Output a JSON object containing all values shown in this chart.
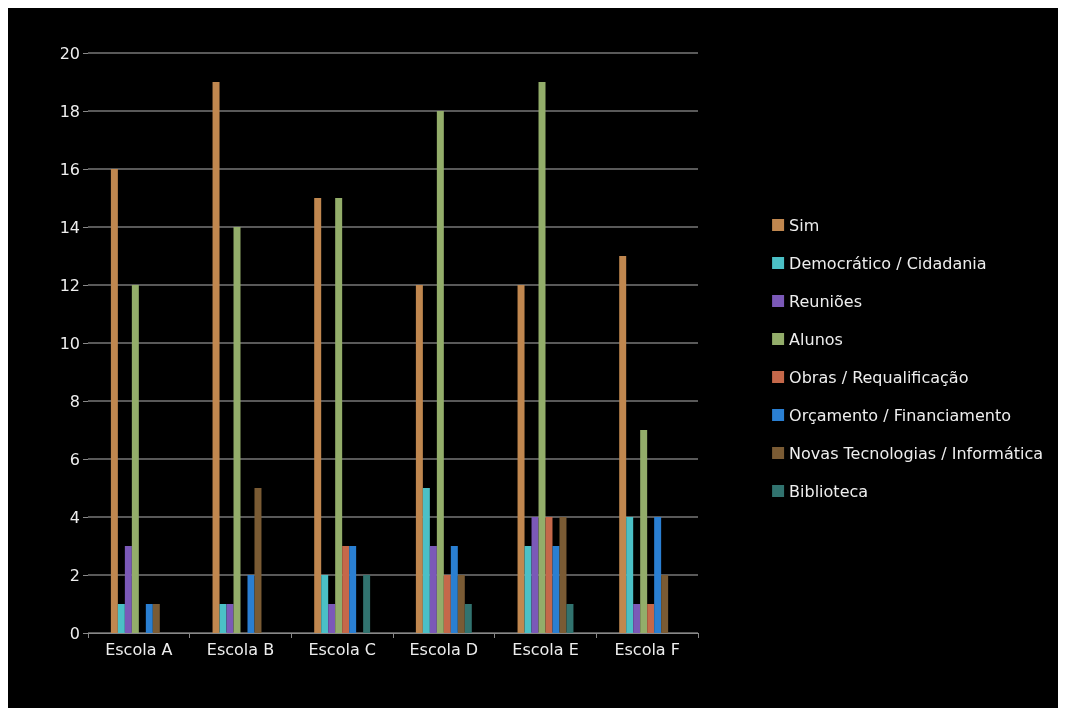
{
  "chart_data": {
    "type": "bar",
    "categories": [
      "Escola A",
      "Escola B",
      "Escola C",
      "Escola D",
      "Escola E",
      "Escola F"
    ],
    "series": [
      {
        "name": "Sim",
        "color": "#c0874f",
        "values": [
          16,
          19,
          15,
          12,
          12,
          13
        ]
      },
      {
        "name": "Democrático / Cidadania",
        "color": "#4bc0c6",
        "values": [
          1,
          1,
          2,
          5,
          3,
          4
        ]
      },
      {
        "name": "Reuniões",
        "color": "#7b59b8",
        "values": [
          3,
          1,
          1,
          3,
          4,
          1
        ]
      },
      {
        "name": "Alunos",
        "color": "#93ad6a",
        "values": [
          12,
          14,
          15,
          18,
          19,
          7
        ]
      },
      {
        "name": "Obras / Requalificação",
        "color": "#c5684a",
        "values": [
          0,
          0,
          3,
          2,
          4,
          1
        ]
      },
      {
        "name": "Orçamento / Financiamento",
        "color": "#2a7fd2",
        "values": [
          1,
          2,
          3,
          3,
          3,
          4
        ]
      },
      {
        "name": "Novas Tecnologias / Informática",
        "color": "#7a5b34",
        "values": [
          1,
          5,
          0,
          2,
          4,
          2
        ]
      },
      {
        "name": "Biblioteca",
        "color": "#31736f",
        "values": [
          0,
          0,
          2,
          1,
          1,
          0
        ]
      }
    ],
    "ylim": [
      0,
      20
    ],
    "yticks": [
      0,
      2,
      4,
      6,
      8,
      10,
      12,
      14,
      16,
      18,
      20
    ],
    "grid": "y",
    "legend": "right"
  }
}
